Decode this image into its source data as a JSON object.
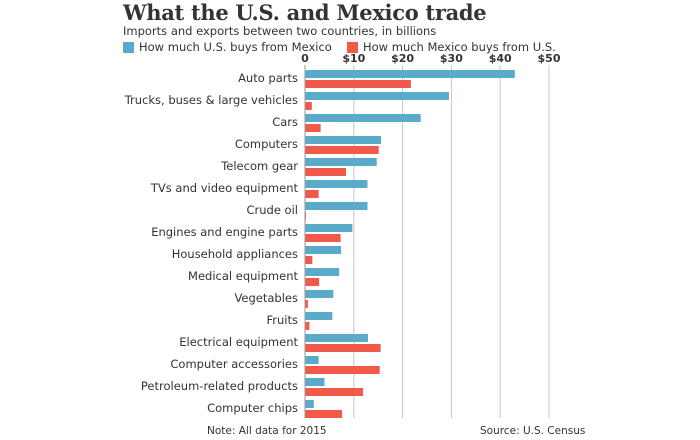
{
  "chart_data": {
    "type": "bar",
    "orientation": "horizontal",
    "title": "What the U.S. and Mexico trade",
    "subtitle": "Imports and exports between two countries, in billions",
    "categories": [
      "Auto parts",
      "Trucks, buses & large vehicles",
      "Cars",
      "Computers",
      "Telecom gear",
      "TVs and video equipment",
      "Crude oil",
      "Engines and engine parts",
      "Household appliances",
      "Medical equipment",
      "Vegetables",
      "Fruits",
      "Electrical equipment",
      "Computer accessories",
      "Petroleum-related products",
      "Computer chips"
    ],
    "series": [
      {
        "name": "How much  U.S. buys from Mexico",
        "color": "#5aaac9",
        "values": [
          43,
          29.5,
          23.7,
          15.6,
          14.7,
          12.8,
          12.8,
          9.7,
          7.4,
          7,
          5.8,
          5.6,
          12.9,
          2.8,
          4,
          1.8
        ]
      },
      {
        "name": "How much Mexico buys from U.S.",
        "color": "#f05a4b",
        "values": [
          21.7,
          1.4,
          3.2,
          15.1,
          8.4,
          2.8,
          0.2,
          7.3,
          1.5,
          2.9,
          0.6,
          0.9,
          15.5,
          15.3,
          11.9,
          7.6
        ]
      }
    ],
    "x_ticks": [
      "0",
      "$10",
      "$20",
      "$30",
      "$40",
      "$50"
    ],
    "x_tick_values": [
      0,
      10,
      20,
      30,
      40,
      50
    ],
    "xlim": [
      0,
      50
    ],
    "grid": true,
    "legend_position": "top",
    "note": "Note: All data for 2015",
    "source": "Source: U.S. Census"
  }
}
